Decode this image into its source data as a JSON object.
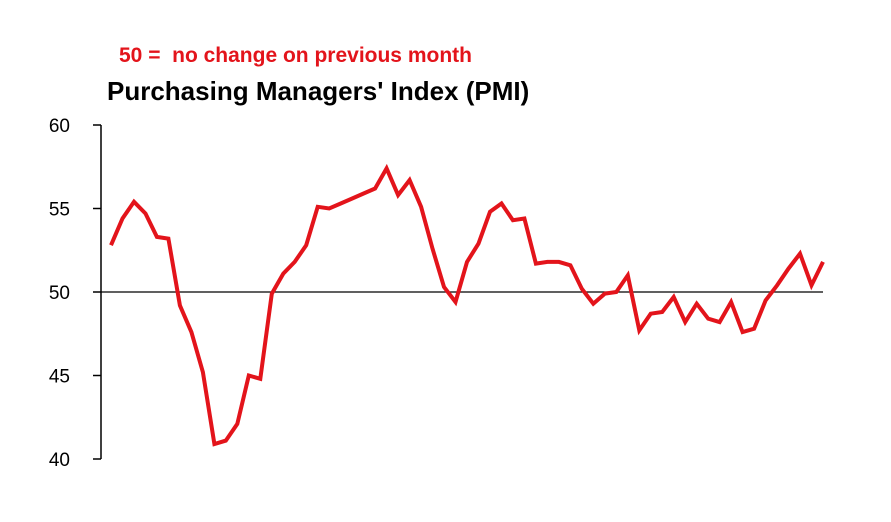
{
  "chart_data": {
    "type": "line",
    "note": "50 =  no change on previous month",
    "title": "Purchasing Managers' Index (PMI)",
    "xlabel": "",
    "ylabel": "",
    "ylim": [
      40,
      60
    ],
    "yticks": [
      {
        "label": "60",
        "value": 60
      },
      {
        "label": "55",
        "value": 55
      },
      {
        "label": "50",
        "value": 50
      },
      {
        "label": "45",
        "value": 45
      },
      {
        "label": "40",
        "value": 40
      }
    ],
    "reference_line": 50,
    "grid": false,
    "colors": {
      "series": "#e3141b",
      "reference": "#000000"
    },
    "series": [
      {
        "values": [
          52.8,
          54.4,
          55.4,
          54.7,
          53.3,
          53.2,
          49.2,
          47.6,
          45.2,
          40.9,
          41.1,
          42.1,
          45.0,
          44.8,
          49.9,
          51.1,
          51.8,
          52.8,
          55.1,
          55.0,
          55.3,
          55.6,
          55.9,
          56.2,
          57.4,
          55.8,
          56.7,
          55.1,
          52.6,
          50.3,
          49.4,
          51.8,
          52.9,
          54.8,
          55.3,
          54.3,
          54.4,
          51.7,
          51.8,
          51.8,
          51.6,
          50.2,
          49.3,
          49.9,
          50.0,
          51.0,
          47.7,
          48.7,
          48.8,
          49.7,
          48.2,
          49.3,
          48.4,
          48.2,
          49.4,
          47.6,
          47.8,
          49.5,
          50.4,
          51.4,
          52.3,
          50.4,
          51.8
        ]
      }
    ]
  }
}
